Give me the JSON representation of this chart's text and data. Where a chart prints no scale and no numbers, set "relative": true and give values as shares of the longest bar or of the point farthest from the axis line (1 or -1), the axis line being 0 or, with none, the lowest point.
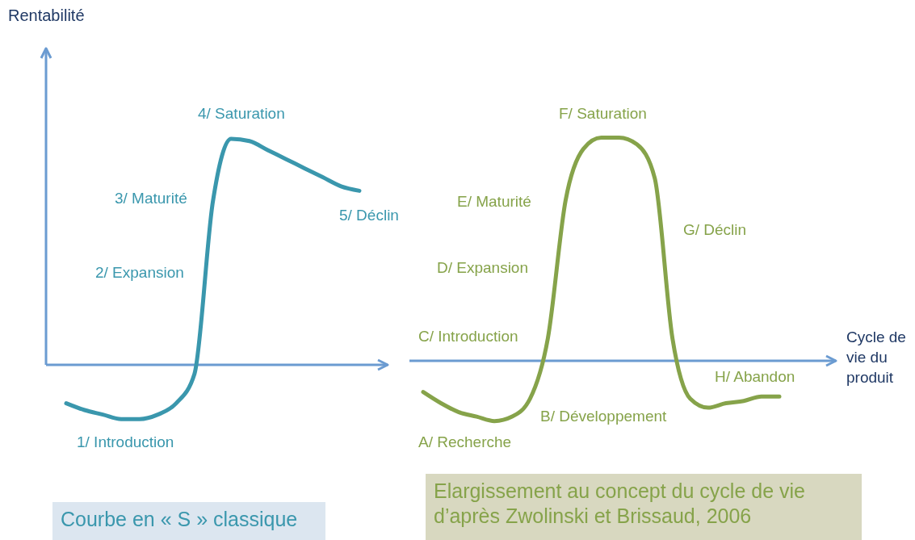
{
  "chart_data": [
    {
      "type": "line",
      "relative": true,
      "ylabel": "Rentabilité",
      "subtitle": "Courbe en « S » classique",
      "categories": [
        null,
        null,
        null,
        null,
        null,
        null,
        null,
        null,
        null,
        null,
        null,
        null,
        null,
        null,
        null,
        null,
        null
      ],
      "series": [
        {
          "color": "#3a97ad",
          "values": [
            -0.17,
            -0.2,
            -0.22,
            -0.24,
            -0.24,
            -0.22,
            -0.17,
            -0.04,
            0.72,
            1.0,
            0.99,
            0.95,
            0.91,
            0.87,
            0.83,
            0.79,
            0.77
          ]
        }
      ],
      "ref_lines": [
        {
          "axis": "y",
          "value": 0,
          "color": "#6b9bd1"
        }
      ],
      "annotations": [
        "1/ Introduction",
        "2/ Expansion",
        "3/ Maturité",
        "4/ Saturation",
        "5/ Déclin"
      ]
    },
    {
      "type": "line",
      "relative": true,
      "xlabel": "Cycle de vie du produit",
      "subtitle": "Elargissement au concept du cycle de vie d’après Zwolinski et Brissaud, 2006",
      "categories": [
        null,
        null,
        null,
        null,
        null,
        null,
        null,
        null,
        null,
        null,
        null,
        null,
        null,
        null,
        null,
        null,
        null,
        null,
        null,
        null,
        null
      ],
      "series": [
        {
          "color": "#86a34a",
          "values": [
            -0.14,
            -0.19,
            -0.23,
            -0.25,
            -0.27,
            -0.25,
            -0.17,
            0.1,
            0.72,
            0.95,
            1.0,
            1.0,
            0.97,
            0.82,
            0.1,
            -0.17,
            -0.21,
            -0.19,
            -0.18,
            -0.16,
            -0.16
          ]
        }
      ],
      "ref_lines": [
        {
          "axis": "y",
          "value": 0,
          "color": "#6b9bd1"
        }
      ],
      "annotations": [
        "A/ Recherche",
        "B/ Développement",
        "C/ Introduction",
        "D/ Expansion",
        "E/ Maturité",
        "F/ Saturation",
        "G/ Déclin",
        "H/ Abandon"
      ]
    }
  ]
}
